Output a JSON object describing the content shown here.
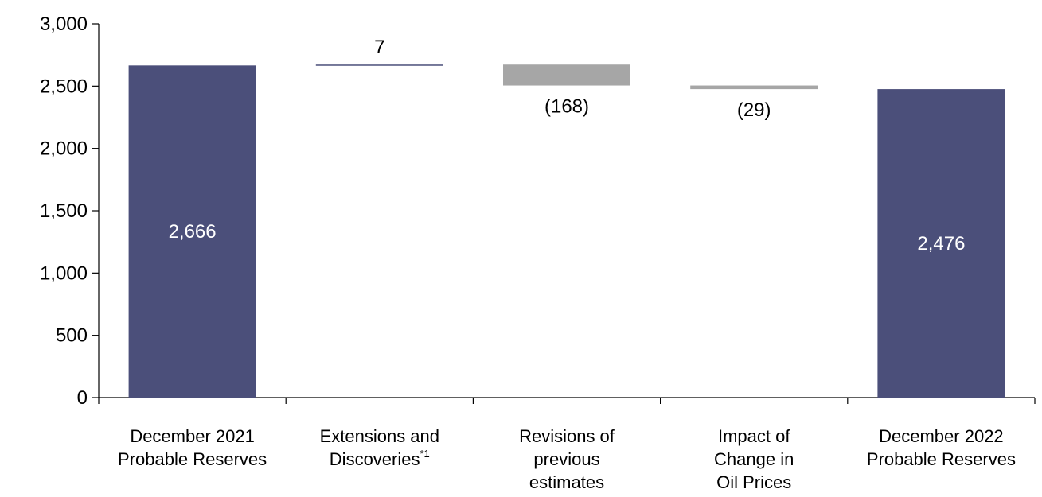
{
  "chart_data": {
    "type": "waterfall",
    "y_ticks": [
      "0",
      "500",
      "1,000",
      "1,500",
      "2,000",
      "2,500",
      "3,000"
    ],
    "y_tick_values": [
      0,
      500,
      1000,
      1500,
      2000,
      2500,
      3000
    ],
    "ylim": [
      0,
      3000
    ],
    "grid": false,
    "categories": [
      {
        "lines": [
          "December 2021",
          "Probable Reserves"
        ],
        "superscript": ""
      },
      {
        "lines": [
          "Extensions and",
          "Discoveries"
        ],
        "superscript": "*1"
      },
      {
        "lines": [
          "Revisions of",
          "previous",
          "estimates"
        ],
        "superscript": ""
      },
      {
        "lines": [
          "Impact of",
          "Change in",
          "Oil Prices"
        ],
        "superscript": ""
      },
      {
        "lines": [
          "December 2022",
          "Probable Reserves"
        ],
        "superscript": ""
      }
    ],
    "bars": [
      {
        "kind": "total",
        "start": 0,
        "end": 2666,
        "label": "2,666",
        "label_position": "inside",
        "color": "#4b4f7a"
      },
      {
        "kind": "increase",
        "start": 2666,
        "end": 2673,
        "label": "7",
        "label_position": "above",
        "color": "#4b4f7a"
      },
      {
        "kind": "decrease",
        "start": 2673,
        "end": 2505,
        "label": "(168)",
        "label_position": "below",
        "color": "#a6a6a6"
      },
      {
        "kind": "decrease",
        "start": 2505,
        "end": 2476,
        "label": "(29)",
        "label_position": "below",
        "color": "#a6a6a6"
      },
      {
        "kind": "total",
        "start": 0,
        "end": 2476,
        "label": "2,476",
        "label_position": "inside",
        "color": "#4b4f7a"
      }
    ]
  }
}
